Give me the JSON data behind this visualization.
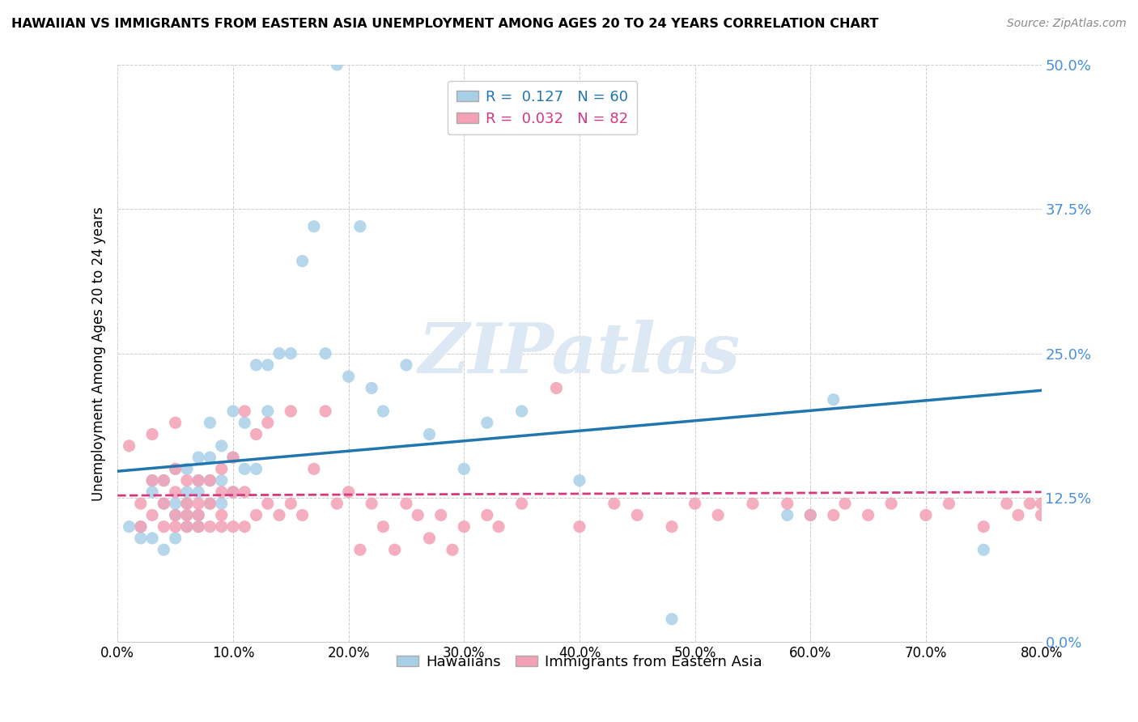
{
  "title": "HAWAIIAN VS IMMIGRANTS FROM EASTERN ASIA UNEMPLOYMENT AMONG AGES 20 TO 24 YEARS CORRELATION CHART",
  "source": "Source: ZipAtlas.com",
  "ylabel": "Unemployment Among Ages 20 to 24 years",
  "xlim": [
    0.0,
    0.8
  ],
  "ylim": [
    0.0,
    0.5
  ],
  "yticks": [
    0.0,
    0.125,
    0.25,
    0.375,
    0.5
  ],
  "ytick_labels": [
    "0.0%",
    "12.5%",
    "25.0%",
    "37.5%",
    "50.0%"
  ],
  "xtick_labels": [
    "0.0%",
    "10.0%",
    "20.0%",
    "30.0%",
    "40.0%",
    "50.0%",
    "60.0%",
    "70.0%",
    "80.0%"
  ],
  "xticks": [
    0.0,
    0.1,
    0.2,
    0.3,
    0.4,
    0.5,
    0.6,
    0.7,
    0.8
  ],
  "series1_name": "Hawaiians",
  "series1_color": "#a8cfe8",
  "series1_R": 0.127,
  "series1_N": 60,
  "series2_name": "Immigrants from Eastern Asia",
  "series2_color": "#f4a0b5",
  "series2_R": 0.032,
  "series2_N": 82,
  "line1_color": "#2176ae",
  "line2_color": "#d63880",
  "ytick_color": "#4a90d9",
  "watermark_text": "ZIPatlas",
  "line1_x0": 0.0,
  "line1_y0": 0.148,
  "line1_x1": 0.8,
  "line1_y1": 0.218,
  "line2_x0": 0.0,
  "line2_y0": 0.127,
  "line2_x1": 0.8,
  "line2_y1": 0.13,
  "hawaiians_x": [
    0.01,
    0.02,
    0.02,
    0.03,
    0.03,
    0.03,
    0.04,
    0.04,
    0.04,
    0.05,
    0.05,
    0.05,
    0.05,
    0.06,
    0.06,
    0.06,
    0.06,
    0.06,
    0.07,
    0.07,
    0.07,
    0.07,
    0.07,
    0.08,
    0.08,
    0.08,
    0.08,
    0.09,
    0.09,
    0.09,
    0.1,
    0.1,
    0.1,
    0.11,
    0.11,
    0.12,
    0.12,
    0.13,
    0.13,
    0.14,
    0.15,
    0.16,
    0.17,
    0.18,
    0.19,
    0.2,
    0.21,
    0.22,
    0.23,
    0.25,
    0.27,
    0.3,
    0.32,
    0.35,
    0.4,
    0.48,
    0.58,
    0.6,
    0.62,
    0.75
  ],
  "hawaiians_y": [
    0.1,
    0.09,
    0.1,
    0.09,
    0.13,
    0.14,
    0.08,
    0.12,
    0.14,
    0.09,
    0.11,
    0.12,
    0.15,
    0.1,
    0.11,
    0.12,
    0.13,
    0.15,
    0.1,
    0.11,
    0.13,
    0.14,
    0.16,
    0.12,
    0.14,
    0.16,
    0.19,
    0.12,
    0.14,
    0.17,
    0.13,
    0.16,
    0.2,
    0.15,
    0.19,
    0.15,
    0.24,
    0.2,
    0.24,
    0.25,
    0.25,
    0.33,
    0.36,
    0.25,
    0.5,
    0.23,
    0.36,
    0.22,
    0.2,
    0.24,
    0.18,
    0.15,
    0.19,
    0.2,
    0.14,
    0.02,
    0.11,
    0.11,
    0.21,
    0.08
  ],
  "eastern_asia_x": [
    0.01,
    0.02,
    0.02,
    0.03,
    0.03,
    0.04,
    0.04,
    0.04,
    0.05,
    0.05,
    0.05,
    0.05,
    0.06,
    0.06,
    0.06,
    0.06,
    0.07,
    0.07,
    0.07,
    0.07,
    0.08,
    0.08,
    0.08,
    0.09,
    0.09,
    0.09,
    0.09,
    0.1,
    0.1,
    0.1,
    0.11,
    0.11,
    0.11,
    0.12,
    0.12,
    0.13,
    0.13,
    0.14,
    0.15,
    0.15,
    0.16,
    0.17,
    0.18,
    0.19,
    0.2,
    0.21,
    0.22,
    0.23,
    0.24,
    0.25,
    0.26,
    0.27,
    0.28,
    0.29,
    0.3,
    0.32,
    0.33,
    0.35,
    0.38,
    0.4,
    0.43,
    0.45,
    0.48,
    0.5,
    0.52,
    0.55,
    0.58,
    0.6,
    0.62,
    0.63,
    0.65,
    0.67,
    0.7,
    0.72,
    0.75,
    0.77,
    0.78,
    0.79,
    0.8,
    0.8,
    0.03,
    0.05
  ],
  "eastern_asia_y": [
    0.17,
    0.1,
    0.12,
    0.11,
    0.14,
    0.1,
    0.12,
    0.14,
    0.1,
    0.11,
    0.13,
    0.15,
    0.1,
    0.11,
    0.12,
    0.14,
    0.1,
    0.11,
    0.12,
    0.14,
    0.1,
    0.12,
    0.14,
    0.1,
    0.11,
    0.13,
    0.15,
    0.1,
    0.13,
    0.16,
    0.1,
    0.13,
    0.2,
    0.11,
    0.18,
    0.12,
    0.19,
    0.11,
    0.12,
    0.2,
    0.11,
    0.15,
    0.2,
    0.12,
    0.13,
    0.08,
    0.12,
    0.1,
    0.08,
    0.12,
    0.11,
    0.09,
    0.11,
    0.08,
    0.1,
    0.11,
    0.1,
    0.12,
    0.22,
    0.1,
    0.12,
    0.11,
    0.1,
    0.12,
    0.11,
    0.12,
    0.12,
    0.11,
    0.11,
    0.12,
    0.11,
    0.12,
    0.11,
    0.12,
    0.1,
    0.12,
    0.11,
    0.12,
    0.12,
    0.11,
    0.18,
    0.19
  ]
}
